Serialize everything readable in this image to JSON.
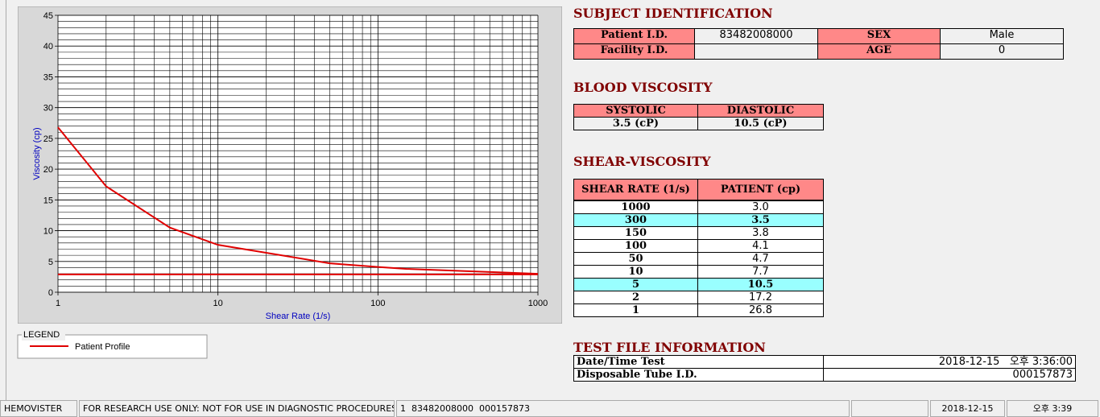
{
  "chart_data": {
    "type": "line",
    "x_label": "Shear Rate (1/s)",
    "y_label": "Viscosity (cp)",
    "xlim": [
      1,
      1000
    ],
    "ylim": [
      0,
      45
    ],
    "xticks": [
      1,
      10,
      100,
      1000
    ],
    "yticks": [
      0,
      5,
      10,
      15,
      20,
      25,
      30,
      35,
      40,
      45
    ],
    "log_x": true,
    "grid": true,
    "legend_title": "LEGEND",
    "series": [
      {
        "name": "Patient Profile",
        "color": "#e00000",
        "x": [
          1,
          2,
          5,
          10,
          50,
          100,
          150,
          300,
          1000
        ],
        "values": [
          26.8,
          17.2,
          10.5,
          7.7,
          4.7,
          4.1,
          3.8,
          3.5,
          3.0
        ]
      },
      {
        "color": "#e00000",
        "x": [
          1,
          1000
        ],
        "values": [
          2.9,
          2.9
        ]
      }
    ]
  },
  "subject": {
    "title": "SUBJECT IDENTIFICATION",
    "rows": [
      [
        "Patient I.D.",
        "83482008000",
        "SEX",
        "Male"
      ],
      [
        "Facility I.D.",
        "",
        "AGE",
        "0"
      ]
    ]
  },
  "blood": {
    "title": "BLOOD VISCOSITY",
    "header": [
      "SYSTOLIC",
      "DIASTOLIC"
    ],
    "values": [
      "3.5 (cP)",
      "10.5 (cP)"
    ]
  },
  "shear": {
    "title": "SHEAR-VISCOSITY",
    "header": [
      "SHEAR RATE (1/s)",
      "PATIENT (cp)"
    ],
    "rows": [
      [
        "1000",
        "3.0"
      ],
      [
        "300",
        "3.5"
      ],
      [
        "150",
        "3.8"
      ],
      [
        "100",
        "4.1"
      ],
      [
        "50",
        "4.7"
      ],
      [
        "10",
        "7.7"
      ],
      [
        "5",
        "10.5"
      ],
      [
        "2",
        "17.2"
      ],
      [
        "1",
        "26.8"
      ]
    ]
  },
  "testfile": {
    "title": "TEST FILE INFORMATION",
    "rows": [
      [
        "Date/Time Test",
        "2018-12-15   오후 3:36:00"
      ],
      [
        "Disposable Tube I.D.",
        "000157873"
      ]
    ]
  },
  "status": [
    "HEMOVISTER",
    "FOR RESEARCH USE ONLY: NOT FOR USE IN DIAGNOSTIC PROCEDURES",
    "1  83482008000  000157873",
    "",
    "2018-12-15",
    "오후 3:39"
  ]
}
